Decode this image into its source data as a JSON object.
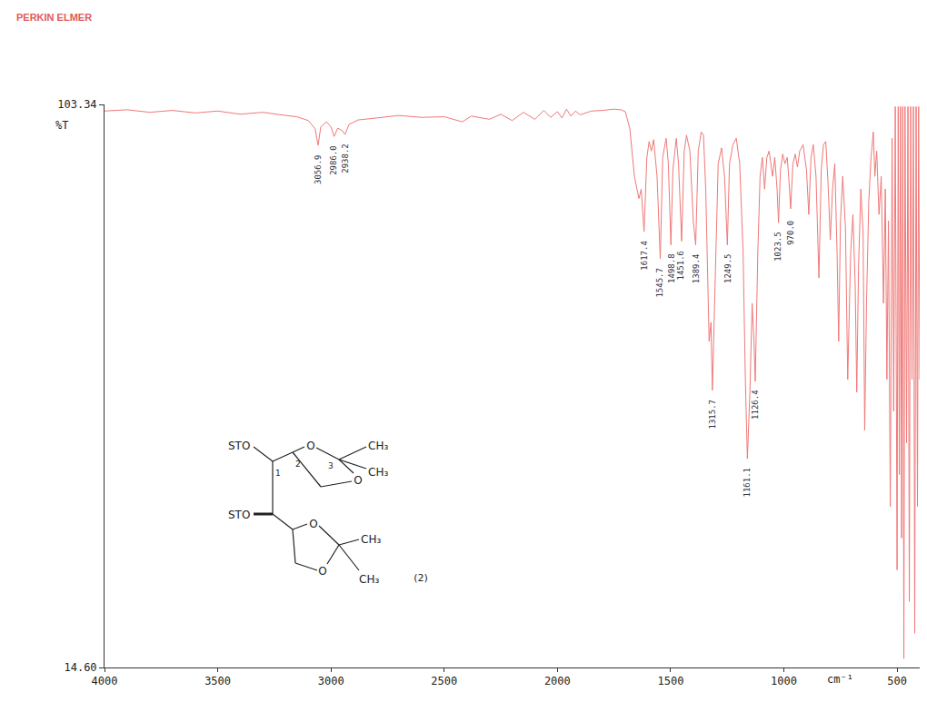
{
  "chart_data": {
    "type": "line",
    "title": "PERKIN ELMER",
    "x_label": "cm⁻¹",
    "y_label": "%T",
    "x": [
      4000,
      3900,
      3800,
      3700,
      3600,
      3500,
      3400,
      3300,
      3200,
      3150,
      3100,
      3070,
      3056.9,
      3045,
      3020,
      3000,
      2986,
      2970,
      2950,
      2938,
      2920,
      2880,
      2800,
      2700,
      2600,
      2500,
      2420,
      2380,
      2300,
      2250,
      2200,
      2150,
      2100,
      2060,
      2030,
      2000,
      1980,
      1960,
      1940,
      1920,
      1900,
      1850,
      1800,
      1750,
      1720,
      1700,
      1680,
      1660,
      1640,
      1630,
      1617.4,
      1605,
      1595,
      1585,
      1575,
      1560,
      1545.7,
      1535,
      1520,
      1510,
      1498.8,
      1490,
      1475,
      1465,
      1451.6,
      1440,
      1430,
      1415,
      1400,
      1389.4,
      1378,
      1365,
      1355,
      1345,
      1330,
      1322,
      1315.7,
      1305,
      1290,
      1275,
      1262,
      1249.5,
      1240,
      1225,
      1210,
      1195,
      1180,
      1170,
      1161.1,
      1150,
      1140,
      1132,
      1126.4,
      1115,
      1105,
      1095,
      1085,
      1075,
      1065,
      1050,
      1040,
      1030,
      1023.5,
      1015,
      1005,
      995,
      985,
      977,
      970,
      960,
      950,
      940,
      930,
      915,
      900,
      890,
      880,
      870,
      858,
      845,
      835,
      825,
      815,
      805,
      795,
      785,
      775,
      765,
      758,
      750,
      740,
      728,
      718,
      705,
      695,
      685,
      678,
      670,
      660,
      650,
      643,
      635,
      625,
      615,
      605,
      598,
      590,
      580,
      570,
      560,
      552,
      545,
      538,
      530,
      522,
      515,
      508,
      500,
      495,
      490,
      485,
      480,
      475,
      470,
      465,
      458,
      452,
      446,
      440,
      434,
      428,
      422,
      416,
      410,
      405,
      400
    ],
    "values": [
      102.3,
      102.5,
      102.1,
      102.4,
      102.0,
      102.3,
      101.8,
      102.1,
      101.6,
      101.4,
      100.8,
      99.5,
      96.9,
      99.8,
      100.6,
      99.8,
      98.3,
      99.6,
      99.2,
      98.6,
      100.2,
      100.9,
      101.2,
      101.6,
      101.3,
      101.4,
      100.6,
      101.5,
      101.0,
      101.8,
      100.8,
      102.1,
      101.0,
      102.4,
      101.3,
      102.2,
      101.2,
      102.6,
      101.5,
      102.3,
      101.7,
      102.3,
      102.4,
      102.6,
      102.5,
      102.2,
      99.5,
      92.0,
      88.5,
      90.0,
      83.3,
      95.0,
      97.5,
      96.0,
      97.8,
      92.0,
      79.0,
      95.0,
      98.0,
      94.0,
      81.2,
      93.0,
      98.0,
      94.0,
      81.8,
      96.0,
      98.5,
      96.0,
      85.0,
      81.2,
      96.0,
      99.0,
      98.5,
      90.0,
      66.0,
      69.0,
      58.3,
      75.0,
      94.0,
      96.5,
      92.0,
      81.2,
      94.0,
      97.0,
      98.0,
      94.0,
      80.0,
      60.0,
      47.5,
      58.0,
      72.0,
      66.0,
      59.7,
      80.0,
      92.0,
      95.0,
      90.0,
      95.0,
      96.0,
      92.0,
      95.0,
      90.0,
      84.7,
      93.0,
      95.5,
      94.0,
      95.0,
      91.0,
      86.9,
      94.0,
      95.5,
      93.5,
      96.0,
      97.0,
      93.0,
      86.0,
      95.0,
      97.0,
      92.0,
      76.0,
      93.0,
      97.0,
      97.5,
      91.0,
      82.0,
      90.0,
      94.0,
      80.0,
      66.0,
      85.0,
      92.0,
      84.0,
      60.0,
      80.0,
      86.0,
      75.0,
      58.0,
      78.0,
      90.0,
      83.0,
      52.0,
      72.0,
      88.0,
      95.0,
      99.0,
      92.0,
      96.0,
      86.0,
      92.0,
      72.0,
      90.0,
      60.0,
      85.0,
      40.0,
      98.0,
      55.0,
      103.0,
      30.0,
      103.0,
      45.0,
      103.0,
      35.0,
      103.0,
      16.0,
      103.0,
      50.0,
      103.0,
      25.0,
      103.0,
      60.0,
      103.0,
      20.0,
      103.0,
      40.0,
      103.0,
      60.0
    ],
    "color": "#f07878",
    "xlim": [
      4000,
      400
    ],
    "xticks": [
      4000,
      3500,
      3000,
      2500,
      2000,
      1500,
      1000,
      500
    ],
    "ylim": [
      14.6,
      103.34
    ],
    "yticks": [
      {
        "value": 14.6,
        "label": "14.60"
      },
      103.34
    ],
    "grid": false,
    "annotations": [
      {
        "x": 3056.9,
        "y": 96.9,
        "text": "3056.9"
      },
      {
        "x": 2986,
        "y": 98.3,
        "text": "2986.0"
      },
      {
        "x": 2938,
        "y": 98.6,
        "text": "2938.2"
      },
      {
        "x": 1617.4,
        "y": 83.3,
        "text": "1617.4"
      },
      {
        "x": 1545.7,
        "y": 79.0,
        "text": "1545.7"
      },
      {
        "x": 1498.8,
        "y": 81.2,
        "text": "1498.8"
      },
      {
        "x": 1451.6,
        "y": 81.8,
        "text": "1451.6"
      },
      {
        "x": 1389.4,
        "y": 81.2,
        "text": "1389.4"
      },
      {
        "x": 1315.7,
        "y": 58.3,
        "text": "1315.7"
      },
      {
        "x": 1249.5,
        "y": 81.2,
        "text": "1249.5"
      },
      {
        "x": 1161.1,
        "y": 47.5,
        "text": "1161.1"
      },
      {
        "x": 1126.4,
        "y": 59.7,
        "text": "1126.4"
      },
      {
        "x": 1023.5,
        "y": 84.7,
        "text": "1023.5"
      },
      {
        "x": 970.0,
        "y": 86.9,
        "text": "970.0"
      }
    ]
  },
  "structure": {
    "substituent": "STO",
    "oxygen": "O",
    "methyl": "CH₃",
    "locants": [
      "1",
      "2",
      "3"
    ],
    "label": "(2)"
  }
}
